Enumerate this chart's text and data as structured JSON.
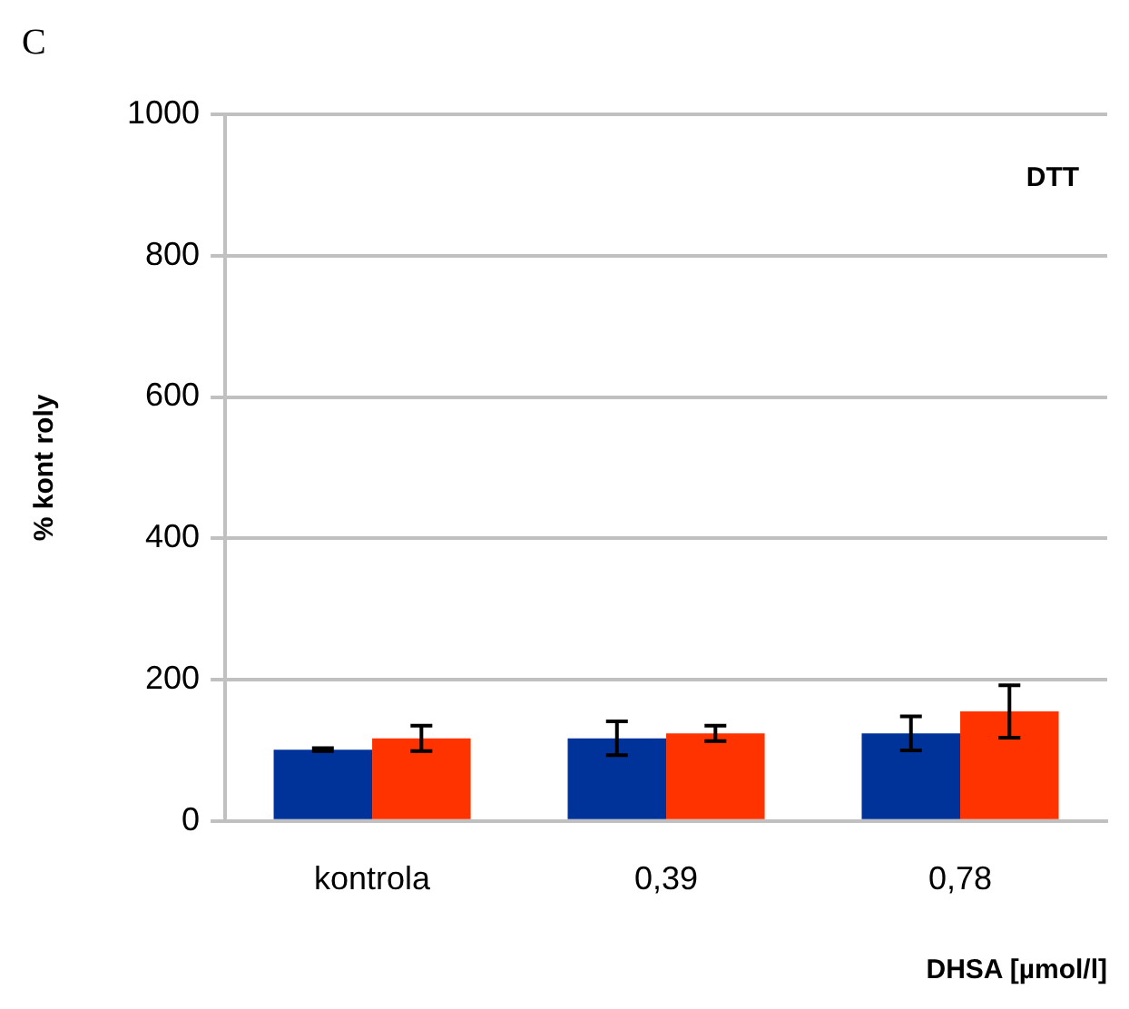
{
  "chart_data": {
    "type": "bar",
    "ylabel": "% kont roly",
    "xlabel": "DHSA [µmol/l]",
    "annotations": [
      "C",
      "DTT"
    ],
    "categories": [
      "kontrola",
      "0,39",
      "0,78"
    ],
    "series": [
      {
        "color": "#003399",
        "values": [
          101,
          117,
          124
        ],
        "errors": [
          2,
          24,
          24
        ]
      },
      {
        "color": "#ff3300",
        "values": [
          117,
          124,
          155
        ],
        "errors": [
          18,
          11,
          37
        ]
      }
    ],
    "ylim": [
      0,
      1000
    ],
    "yticks": [
      0,
      200,
      400,
      600,
      800,
      1000
    ],
    "grid": "y",
    "legend": false
  }
}
